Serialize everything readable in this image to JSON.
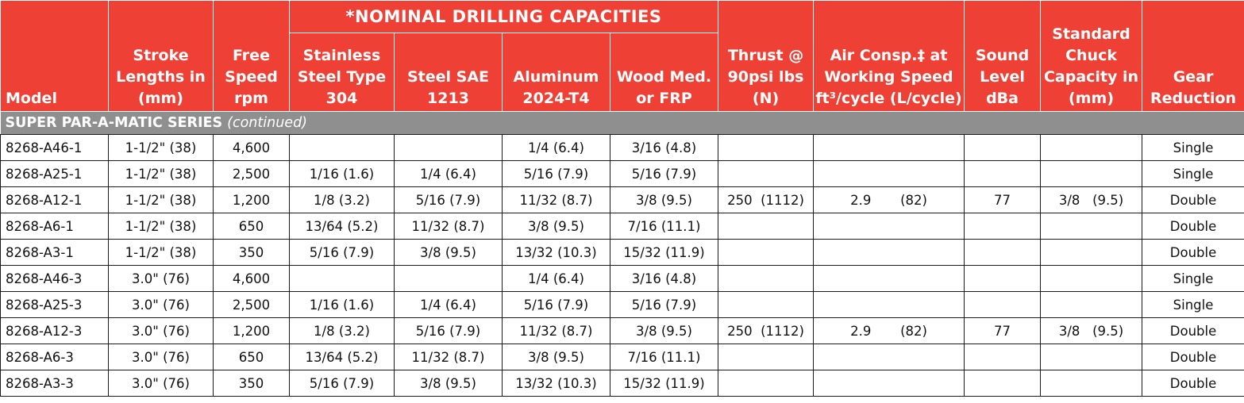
{
  "group_header": "*NOMINAL DRILLING CAPACITIES",
  "columns": {
    "model": "Model",
    "stroke": "Stroke Lengths in (mm)",
    "speed": "Free Speed rpm",
    "stainless": "Stainless Steel Type 304",
    "steel": "Steel SAE 1213",
    "aluminum": "Aluminum 2024-T4",
    "wood": "Wood Med. or FRP",
    "thrust": "Thrust @ 90psi lbs (N)",
    "air": "Air Consp.‡ at Working Speed ft³/cycle (L/cycle)",
    "sound": "Sound Level dBa",
    "chuck": "Standard Chuck Capacity in (mm)",
    "gear": "Gear Reduction"
  },
  "series": {
    "name": "SUPER PAR-A-MATIC SERIES",
    "note": "(continued)"
  },
  "rows": [
    {
      "model": "8268-A46-1",
      "stroke": "1-1/2\" (38)",
      "speed": "4,600",
      "stainless": "",
      "steel": "",
      "aluminum": "1/4 (6.4)",
      "wood": "3/16 (4.8)",
      "thrust": "",
      "air": "",
      "sound": "",
      "chuck": "",
      "gear": "Single"
    },
    {
      "model": "8268-A25-1",
      "stroke": "1-1/2\" (38)",
      "speed": "2,500",
      "stainless": "1/16 (1.6)",
      "steel": "1/4 (6.4)",
      "aluminum": "5/16 (7.9)",
      "wood": "5/16 (7.9)",
      "thrust": "",
      "air": "",
      "sound": "",
      "chuck": "",
      "gear": "Single"
    },
    {
      "model": "8268-A12-1",
      "stroke": "1-1/2\" (38)",
      "speed": "1,200",
      "stainless": "1/8 (3.2)",
      "steel": "5/16 (7.9)",
      "aluminum": "11/32 (8.7)",
      "wood": "3/8 (9.5)",
      "thrust": "250  (1112)",
      "air": "2.9       (82)",
      "sound": "77",
      "chuck": "3/8   (9.5)",
      "gear": "Double"
    },
    {
      "model": "8268-A6-1",
      "stroke": "1-1/2\" (38)",
      "speed": "650",
      "stainless": "13/64 (5.2)",
      "steel": "11/32 (8.7)",
      "aluminum": "3/8 (9.5)",
      "wood": "7/16 (11.1)",
      "thrust": "",
      "air": "",
      "sound": "",
      "chuck": "",
      "gear": "Double"
    },
    {
      "model": "8268-A3-1",
      "stroke": "1-1/2\" (38)",
      "speed": "350",
      "stainless": "5/16 (7.9)",
      "steel": "3/8 (9.5)",
      "aluminum": "13/32 (10.3)",
      "wood": "15/32 (11.9)",
      "thrust": "",
      "air": "",
      "sound": "",
      "chuck": "",
      "gear": "Double"
    },
    {
      "model": "8268-A46-3",
      "stroke": "3.0\" (76)",
      "speed": "4,600",
      "stainless": "",
      "steel": "",
      "aluminum": "1/4 (6.4)",
      "wood": "3/16 (4.8)",
      "thrust": "",
      "air": "",
      "sound": "",
      "chuck": "",
      "gear": "Single"
    },
    {
      "model": "8268-A25-3",
      "stroke": "3.0\" (76)",
      "speed": "2,500",
      "stainless": "1/16 (1.6)",
      "steel": "1/4 (6.4)",
      "aluminum": "5/16 (7.9)",
      "wood": "5/16 (7.9)",
      "thrust": "",
      "air": "",
      "sound": "",
      "chuck": "",
      "gear": "Single"
    },
    {
      "model": "8268-A12-3",
      "stroke": "3.0\" (76)",
      "speed": "1,200",
      "stainless": "1/8 (3.2)",
      "steel": "5/16 (7.9)",
      "aluminum": "11/32 (8.7)",
      "wood": "3/8 (9.5)",
      "thrust": "250  (1112)",
      "air": "2.9       (82)",
      "sound": "77",
      "chuck": "3/8   (9.5)",
      "gear": "Double"
    },
    {
      "model": "8268-A6-3",
      "stroke": "3.0\" (76)",
      "speed": "650",
      "stainless": "13/64 (5.2)",
      "steel": "11/32 (8.7)",
      "aluminum": "3/8 (9.5)",
      "wood": "7/16 (11.1)",
      "thrust": "",
      "air": "",
      "sound": "",
      "chuck": "",
      "gear": "Double"
    },
    {
      "model": "8268-A3-3",
      "stroke": "3.0\" (76)",
      "speed": "350",
      "stainless": "5/16 (7.9)",
      "steel": "3/8 (9.5)",
      "aluminum": "13/32 (10.3)",
      "wood": "15/32 (11.9)",
      "thrust": "",
      "air": "",
      "sound": "",
      "chuck": "",
      "gear": "Double"
    }
  ]
}
